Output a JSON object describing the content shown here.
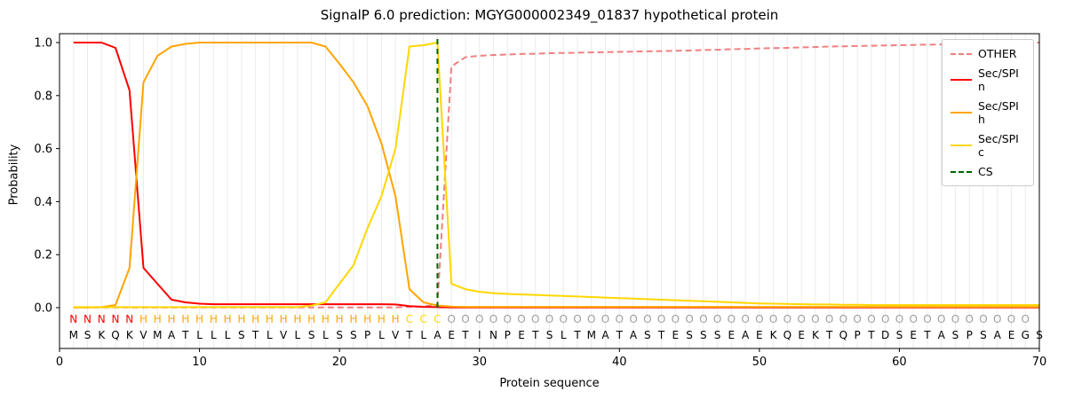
{
  "title": "SignalP 6.0 prediction: MGYG000002349_01837 hypothetical protein",
  "chart_data": {
    "type": "line",
    "title": "SignalP 6.0 prediction: MGYG000002349_01837 hypothetical protein",
    "xlabel": "Protein sequence",
    "ylabel": "Probability",
    "xlim": [
      0,
      70
    ],
    "ylim": [
      0.0,
      1.0
    ],
    "grid": "vertical-per-residue",
    "legend_position": "upper right",
    "x_ticks": [
      0,
      10,
      20,
      30,
      40,
      50,
      60,
      70
    ],
    "y_ticks": [
      "0.0",
      "0.2",
      "0.4",
      "0.6",
      "0.8",
      "1.0"
    ],
    "sequence": "MSKQKVMATLLLSTLVLSLSSPLVTLAETINPETSLTMATASTESSSEAEKQEKTQPTDSETASPSAEGS",
    "regions": "NNNNNHHHHHHHHHHHHHHHHHHHCCCOOOOOOOOOOOOOOOOOOOOOOOOOOOOOOOOOOOOOOOOOO",
    "region_colors": {
      "N": "#ff0000",
      "H": "#ffa500",
      "C": "#ffd700",
      "O": "#9e9e9e"
    },
    "cs_line": {
      "name": "CS",
      "position": 27,
      "color": "#006400",
      "dash": "6 5"
    },
    "series": [
      {
        "id": "other",
        "name": "OTHER",
        "color": "#f08080",
        "dash": "7 4",
        "values": [
          0.001,
          0.001,
          0.001,
          0.001,
          0.001,
          0.001,
          0.001,
          0.001,
          0.001,
          0.001,
          0.001,
          0.001,
          0.001,
          0.001,
          0.001,
          0.001,
          0.001,
          0.001,
          0.001,
          0.001,
          0.001,
          0.001,
          0.001,
          0.001,
          0.003,
          0.005,
          0.01,
          0.91,
          0.945,
          0.95,
          0.953,
          0.955,
          0.957,
          0.958,
          0.96,
          0.961,
          0.962,
          0.963,
          0.964,
          0.965,
          0.966,
          0.967,
          0.968,
          0.969,
          0.97,
          0.972,
          0.973,
          0.975,
          0.976,
          0.978,
          0.979,
          0.98,
          0.982,
          0.983,
          0.985,
          0.986,
          0.987,
          0.988,
          0.989,
          0.99,
          0.991,
          0.992,
          0.993,
          0.994,
          0.995,
          0.996,
          0.997,
          0.998,
          0.999,
          1.0
        ]
      },
      {
        "id": "sec-spi-n",
        "name": "Sec/SPI n",
        "color": "#ff0000",
        "dash": null,
        "values": [
          1.0,
          1.0,
          1.0,
          0.98,
          0.82,
          0.15,
          0.09,
          0.03,
          0.02,
          0.015,
          0.013,
          0.013,
          0.013,
          0.013,
          0.013,
          0.013,
          0.013,
          0.013,
          0.013,
          0.013,
          0.013,
          0.013,
          0.013,
          0.012,
          0.006,
          0.003,
          0.002,
          0.001,
          0.001,
          0.001,
          0.001,
          0.001,
          0.001,
          0.001,
          0.001,
          0.001,
          0.001,
          0.001,
          0.001,
          0.001,
          0.001,
          0.001,
          0.001,
          0.001,
          0.001,
          0.001,
          0.001,
          0.001,
          0.001,
          0.001,
          0.001,
          0.001,
          0.001,
          0.001,
          0.001,
          0.001,
          0.001,
          0.001,
          0.001,
          0.001,
          0.001,
          0.001,
          0.001,
          0.001,
          0.001,
          0.001,
          0.001,
          0.001,
          0.001,
          0.001
        ]
      },
      {
        "id": "sec-spi-h",
        "name": "Sec/SPI h",
        "color": "#ffa500",
        "dash": null,
        "values": [
          0.001,
          0.001,
          0.002,
          0.01,
          0.15,
          0.85,
          0.95,
          0.985,
          0.995,
          1.0,
          1.0,
          1.0,
          1.0,
          1.0,
          1.0,
          1.0,
          1.0,
          1.0,
          0.985,
          0.92,
          0.85,
          0.76,
          0.62,
          0.42,
          0.07,
          0.02,
          0.008,
          0.004,
          0.003,
          0.003,
          0.003,
          0.003,
          0.003,
          0.003,
          0.003,
          0.003,
          0.003,
          0.003,
          0.003,
          0.003,
          0.003,
          0.003,
          0.003,
          0.003,
          0.003,
          0.003,
          0.003,
          0.003,
          0.003,
          0.003,
          0.003,
          0.003,
          0.003,
          0.003,
          0.003,
          0.003,
          0.003,
          0.003,
          0.003,
          0.003,
          0.003,
          0.003,
          0.003,
          0.003,
          0.003,
          0.003,
          0.003,
          0.003,
          0.003,
          0.003
        ]
      },
      {
        "id": "sec-spi-c",
        "name": "Sec/SPI c",
        "color": "#ffd700",
        "dash": null,
        "values": [
          0.002,
          0.002,
          0.002,
          0.002,
          0.002,
          0.002,
          0.002,
          0.002,
          0.002,
          0.002,
          0.002,
          0.002,
          0.002,
          0.002,
          0.002,
          0.002,
          0.002,
          0.008,
          0.02,
          0.09,
          0.16,
          0.3,
          0.42,
          0.6,
          0.985,
          0.99,
          1.0,
          0.09,
          0.07,
          0.06,
          0.055,
          0.052,
          0.05,
          0.048,
          0.046,
          0.044,
          0.042,
          0.04,
          0.038,
          0.036,
          0.034,
          0.032,
          0.03,
          0.028,
          0.026,
          0.024,
          0.022,
          0.02,
          0.018,
          0.016,
          0.015,
          0.014,
          0.013,
          0.012,
          0.012,
          0.011,
          0.011,
          0.01,
          0.01,
          0.01,
          0.01,
          0.01,
          0.01,
          0.01,
          0.01,
          0.01,
          0.01,
          0.01,
          0.01,
          0.01
        ]
      }
    ]
  },
  "legend": {
    "items": [
      {
        "label": "OTHER",
        "color": "#f08080",
        "dash": true
      },
      {
        "label": "Sec/SPI n",
        "color": "#ff0000",
        "dash": false
      },
      {
        "label": "Sec/SPI h",
        "color": "#ffa500",
        "dash": false
      },
      {
        "label": "Sec/SPI c",
        "color": "#ffd700",
        "dash": false
      },
      {
        "label": "CS",
        "color": "#006400",
        "dash": true
      }
    ]
  }
}
